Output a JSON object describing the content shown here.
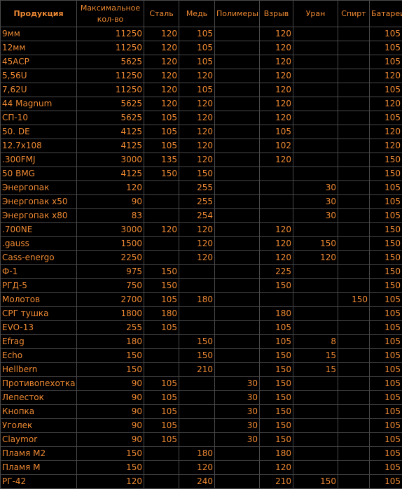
{
  "headers": [
    "Продукция",
    "Максимальное кол-во",
    "Сталь",
    "Медь",
    "Полимеры",
    "Взрыв",
    "Уран",
    "Спирт",
    "Батареи"
  ],
  "rows": [
    [
      "9мм",
      "11250",
      "120",
      "105",
      "",
      "120",
      "",
      "",
      "105"
    ],
    [
      "12мм",
      "11250",
      "120",
      "105",
      "",
      "120",
      "",
      "",
      "105"
    ],
    [
      "45ACP",
      "5625",
      "120",
      "105",
      "",
      "120",
      "",
      "",
      "105"
    ],
    [
      "5,56U",
      "11250",
      "120",
      "120",
      "",
      "120",
      "",
      "",
      "120"
    ],
    [
      "7,62U",
      "11250",
      "120",
      "105",
      "",
      "120",
      "",
      "",
      "105"
    ],
    [
      "44 Magnum",
      "5625",
      "120",
      "120",
      "",
      "120",
      "",
      "",
      "120"
    ],
    [
      "СП-10",
      "5625",
      "105",
      "120",
      "",
      "120",
      "",
      "",
      "105"
    ],
    [
      "50. DE",
      "4125",
      "105",
      "120",
      "",
      "105",
      "",
      "",
      "120"
    ],
    [
      "12.7x108",
      "4125",
      "105",
      "120",
      "",
      "102",
      "",
      "",
      "120"
    ],
    [
      ".300FMJ",
      "3000",
      "135",
      "120",
      "",
      "120",
      "",
      "",
      "150"
    ],
    [
      "50 BMG",
      "4125",
      "150",
      "150",
      "",
      "",
      "",
      "",
      "150"
    ],
    [
      "Энергопак",
      "120",
      "",
      "255",
      "",
      "",
      "30",
      "",
      "105"
    ],
    [
      "Энергопак x50",
      "90",
      "",
      "255",
      "",
      "",
      "30",
      "",
      "105"
    ],
    [
      "Энергопак x80",
      "83",
      "",
      "254",
      "",
      "",
      "30",
      "",
      "105"
    ],
    [
      ".700NE",
      "3000",
      "120",
      "120",
      "",
      "120",
      "",
      "",
      "150"
    ],
    [
      ".gauss",
      "1500",
      "",
      "120",
      "",
      "120",
      "150",
      "",
      "150"
    ],
    [
      "Cass-energo",
      "2250",
      "",
      "120",
      "",
      "120",
      "120",
      "",
      "150"
    ],
    [
      "Ф-1",
      "975",
      "150",
      "",
      "",
      "225",
      "",
      "",
      "150"
    ],
    [
      "РГД-5",
      "750",
      "150",
      "",
      "",
      "150",
      "",
      "",
      "150"
    ],
    [
      "Молотов",
      "2700",
      "105",
      "180",
      "",
      "",
      "",
      "150",
      "105"
    ],
    [
      "СРГ тушка",
      "1800",
      "180",
      "",
      "",
      "180",
      "",
      "",
      "105"
    ],
    [
      "EVO-13",
      "255",
      "105",
      "",
      "",
      "105",
      "",
      "",
      "105"
    ],
    [
      "Efrag",
      "180",
      "",
      "150",
      "",
      "105",
      "8",
      "",
      "105"
    ],
    [
      "Echo",
      "150",
      "",
      "150",
      "",
      "150",
      "15",
      "",
      "105"
    ],
    [
      "Hellbern",
      "150",
      "",
      "210",
      "",
      "150",
      "15",
      "",
      "105"
    ],
    [
      "Противопехотка",
      "90",
      "105",
      "",
      "30",
      "150",
      "",
      "",
      "105"
    ],
    [
      "Лепесток",
      "90",
      "105",
      "",
      "30",
      "150",
      "",
      "",
      "105"
    ],
    [
      "Кнопка",
      "90",
      "105",
      "",
      "30",
      "150",
      "",
      "",
      "105"
    ],
    [
      "Уголек",
      "90",
      "105",
      "",
      "30",
      "150",
      "",
      "",
      "105"
    ],
    [
      "Claymor",
      "90",
      "105",
      "",
      "30",
      "150",
      "",
      "",
      "105"
    ],
    [
      "Пламя М2",
      "150",
      "",
      "180",
      "",
      "180",
      "",
      "",
      "105"
    ],
    [
      "Пламя М",
      "150",
      "",
      "120",
      "",
      "120",
      "",
      "",
      "105"
    ],
    [
      "РГ-42",
      "120",
      "",
      "240",
      "",
      "210",
      "150",
      "",
      "105"
    ]
  ],
  "colors": {
    "background": "#000000",
    "text": "#f08a33",
    "grid": "#4a4a4a"
  }
}
